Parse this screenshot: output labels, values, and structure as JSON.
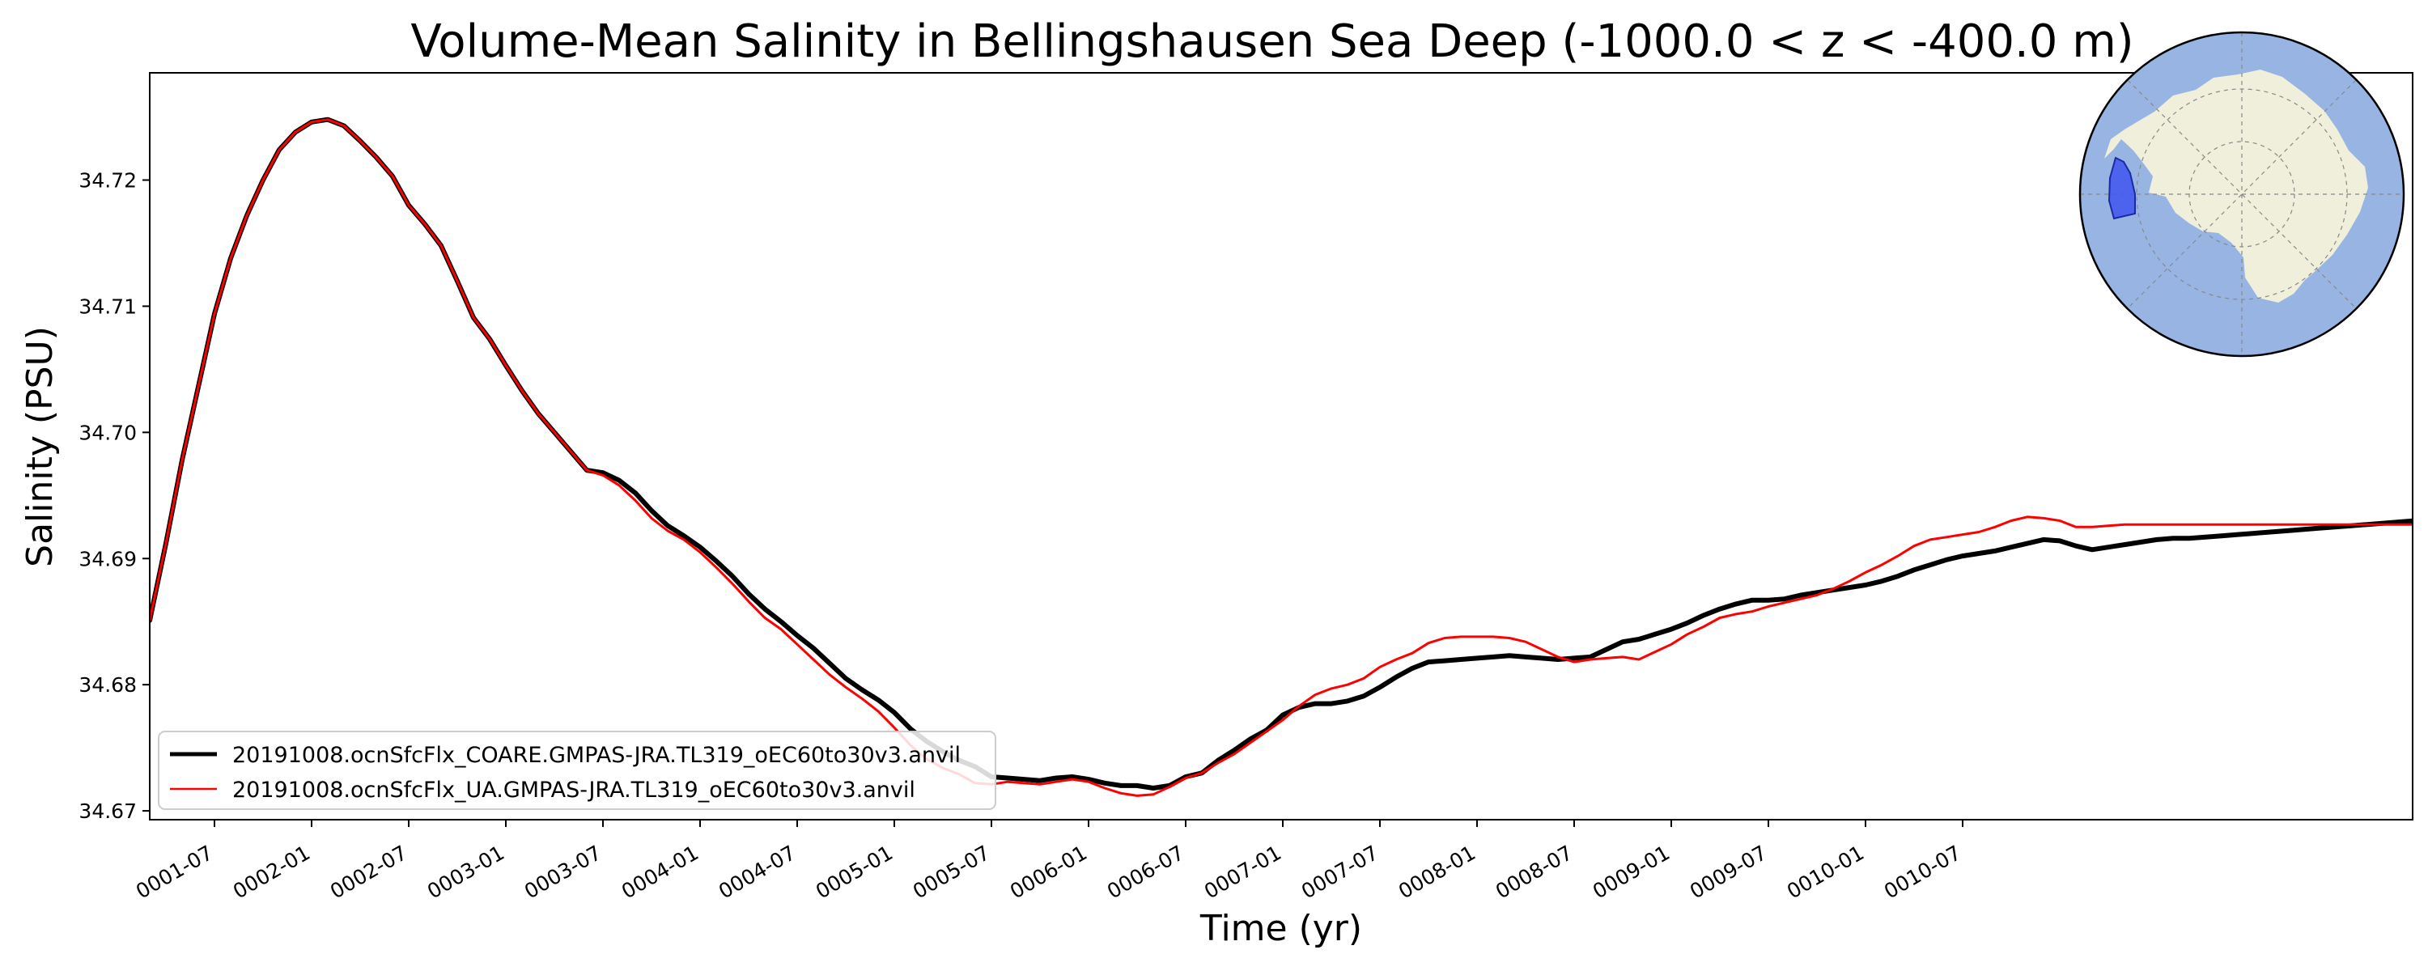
{
  "chart_data": {
    "type": "line",
    "title": "Volume-Mean Salinity in Bellingshausen Sea Deep (-1000.0 < z < -400.0 m)",
    "xlabel": "Time (yr)",
    "ylabel": "Salinity (PSU)",
    "x_unit": "months since 0001-01",
    "xlim": [
      2.0,
      141.8
    ],
    "ylim": [
      34.6693,
      34.7285
    ],
    "x_ticks": [
      {
        "value": 6,
        "label": "0001-07"
      },
      {
        "value": 12,
        "label": "0002-01"
      },
      {
        "value": 18,
        "label": "0002-07"
      },
      {
        "value": 24,
        "label": "0003-01"
      },
      {
        "value": 30,
        "label": "0003-07"
      },
      {
        "value": 36,
        "label": "0004-01"
      },
      {
        "value": 42,
        "label": "0004-07"
      },
      {
        "value": 48,
        "label": "0005-01"
      },
      {
        "value": 54,
        "label": "0005-07"
      },
      {
        "value": 60,
        "label": "0006-01"
      },
      {
        "value": 66,
        "label": "0006-07"
      },
      {
        "value": 72,
        "label": "0007-01"
      },
      {
        "value": 78,
        "label": "0007-07"
      },
      {
        "value": 84,
        "label": "0008-01"
      },
      {
        "value": 90,
        "label": "0008-07"
      },
      {
        "value": 96,
        "label": "0009-01"
      },
      {
        "value": 102,
        "label": "0009-07"
      },
      {
        "value": 108,
        "label": "0010-01"
      },
      {
        "value": 114,
        "label": "0010-07"
      }
    ],
    "y_ticks": [
      {
        "value": 34.67,
        "label": "34.67"
      },
      {
        "value": 34.68,
        "label": "34.68"
      },
      {
        "value": 34.69,
        "label": "34.69"
      },
      {
        "value": 34.7,
        "label": "34.70"
      },
      {
        "value": 34.71,
        "label": "34.71"
      },
      {
        "value": 34.72,
        "label": "34.72"
      }
    ],
    "legend_position": "lower-left",
    "series": [
      {
        "name": "20191008.ocnSfcFlx_COARE.GMPAS-JRA.TL319_oEC60to30v3.anvil",
        "color": "#000000",
        "linewidth": 3,
        "x": [
          2,
          3,
          4,
          5,
          6,
          7,
          8,
          9,
          10,
          11,
          12,
          13,
          14,
          15,
          16,
          17,
          18,
          19,
          20,
          21,
          22,
          23,
          24,
          25,
          26,
          27,
          28,
          29,
          30,
          31,
          32,
          33,
          34,
          35,
          36,
          37,
          38,
          39,
          40,
          41,
          42,
          43,
          44,
          45,
          46,
          47,
          48,
          49,
          50,
          51,
          52,
          53,
          54,
          55,
          56,
          57,
          58,
          59,
          60,
          61,
          62,
          63,
          64,
          65,
          66,
          67,
          68,
          69,
          70,
          71,
          72,
          73,
          74,
          75,
          76,
          77,
          78,
          79,
          80,
          81,
          82,
          83,
          84,
          85,
          86,
          87,
          88,
          89,
          90,
          91,
          92,
          93,
          94,
          95,
          96,
          97,
          98,
          99,
          100,
          101,
          102,
          103,
          104,
          105,
          106,
          107,
          108,
          109,
          110,
          111,
          112,
          113,
          114,
          115,
          116,
          117,
          118,
          119,
          120,
          121,
          122,
          123,
          124,
          125,
          126,
          127,
          128,
          129,
          130,
          131,
          132,
          133,
          134,
          135,
          136,
          137,
          138,
          139,
          140,
          141,
          142
        ],
        "y": [
          34.6851,
          34.6912,
          34.6978,
          34.7036,
          34.7094,
          34.7138,
          34.7172,
          34.72,
          34.7224,
          34.7238,
          34.7246,
          34.7248,
          34.7243,
          34.7231,
          34.7218,
          34.7203,
          34.718,
          34.7165,
          34.7148,
          34.712,
          34.7091,
          34.7074,
          34.7053,
          34.7033,
          34.7015,
          34.7,
          34.6985,
          34.697,
          34.6968,
          34.6962,
          34.6952,
          34.6938,
          34.6926,
          34.6918,
          34.6909,
          34.6898,
          34.6886,
          34.6872,
          34.686,
          34.685,
          34.6839,
          34.6829,
          34.6817,
          34.6805,
          34.6796,
          34.6788,
          34.6778,
          34.6765,
          34.6755,
          34.6747,
          34.674,
          34.6735,
          34.6727,
          34.6726,
          34.6725,
          34.6724,
          34.6726,
          34.6727,
          34.6725,
          34.6722,
          34.672,
          34.672,
          34.6718,
          34.672,
          34.6727,
          34.673,
          34.674,
          34.6748,
          34.6757,
          34.6764,
          34.6776,
          34.6782,
          34.6785,
          34.6785,
          34.6787,
          34.6791,
          34.6798,
          34.6806,
          34.6813,
          34.6818,
          34.6819,
          34.682,
          34.6821,
          34.6822,
          34.6823,
          34.6822,
          34.6821,
          34.682,
          34.6821,
          34.6822,
          34.6828,
          34.6834,
          34.6836,
          34.684,
          34.6844,
          34.6849,
          34.6855,
          34.686,
          34.6864,
          34.6867,
          34.6867,
          34.6868,
          34.6871,
          34.6873,
          34.6875,
          34.6877,
          34.6879,
          34.6882,
          34.6886,
          34.6891,
          34.6895,
          34.6899,
          34.6902,
          34.6904,
          34.6906,
          34.6909,
          34.6912,
          34.6915,
          34.6914,
          34.691,
          34.6907,
          34.6909,
          34.6911,
          34.6913,
          34.6915,
          34.6916,
          34.6916,
          34.6917,
          34.6918,
          34.6919,
          34.692,
          34.6921,
          34.6922,
          34.6923,
          34.6924,
          34.6925,
          34.6926,
          34.6927,
          34.6928,
          34.6929,
          34.693
        ]
      },
      {
        "name": "20191008.ocnSfcFlx_UA.GMPAS-JRA.TL319_oEC60to30v3.anvil",
        "color": "#ff0000",
        "linewidth": 1.5,
        "x": [
          2,
          3,
          4,
          5,
          6,
          7,
          8,
          9,
          10,
          11,
          12,
          13,
          14,
          15,
          16,
          17,
          18,
          19,
          20,
          21,
          22,
          23,
          24,
          25,
          26,
          27,
          28,
          29,
          30,
          31,
          32,
          33,
          34,
          35,
          36,
          37,
          38,
          39,
          40,
          41,
          42,
          43,
          44,
          45,
          46,
          47,
          48,
          49,
          50,
          51,
          52,
          53,
          54,
          55,
          56,
          57,
          58,
          59,
          60,
          61,
          62,
          63,
          64,
          65,
          66,
          67,
          68,
          69,
          70,
          71,
          72,
          73,
          74,
          75,
          76,
          77,
          78,
          79,
          80,
          81,
          82,
          83,
          84,
          85,
          86,
          87,
          88,
          89,
          90,
          91,
          92,
          93,
          94,
          95,
          96,
          97,
          98,
          99,
          100,
          101,
          102,
          103,
          104,
          105,
          106,
          107,
          108,
          109,
          110,
          111,
          112,
          113,
          114,
          115,
          116,
          117,
          118,
          119,
          120,
          121,
          122,
          123,
          124,
          125,
          126,
          127,
          128,
          129,
          130,
          131,
          132,
          133,
          134,
          135,
          136,
          137,
          138,
          139,
          140,
          141,
          142
        ],
        "y": [
          34.6851,
          34.6912,
          34.6978,
          34.7036,
          34.7094,
          34.7138,
          34.7172,
          34.72,
          34.7224,
          34.7238,
          34.7246,
          34.7248,
          34.7243,
          34.7231,
          34.7218,
          34.7203,
          34.718,
          34.7165,
          34.7148,
          34.712,
          34.7091,
          34.7074,
          34.7053,
          34.7033,
          34.7015,
          34.7,
          34.6985,
          34.697,
          34.6966,
          34.6958,
          34.6946,
          34.6932,
          34.6922,
          34.6915,
          34.6905,
          34.6893,
          34.688,
          34.6866,
          34.6853,
          34.6844,
          34.6832,
          34.682,
          34.6808,
          34.6798,
          34.6789,
          34.6779,
          34.6766,
          34.6752,
          34.6741,
          34.6734,
          34.6729,
          34.6722,
          34.6721,
          34.6723,
          34.6722,
          34.6721,
          34.6723,
          34.6725,
          34.6723,
          34.6718,
          34.6714,
          34.6712,
          34.6713,
          34.6719,
          34.6726,
          34.673,
          34.6738,
          34.6745,
          34.6754,
          34.6763,
          34.6772,
          34.6783,
          34.6792,
          34.6797,
          34.68,
          34.6805,
          34.6814,
          34.682,
          34.6825,
          34.6833,
          34.6837,
          34.6838,
          34.6838,
          34.6838,
          34.6837,
          34.6834,
          34.6828,
          34.6822,
          34.6818,
          34.682,
          34.6821,
          34.6822,
          34.682,
          34.6826,
          34.6832,
          34.684,
          34.6846,
          34.6853,
          34.6856,
          34.6858,
          34.6862,
          34.6865,
          34.6868,
          34.6871,
          34.6876,
          34.6882,
          34.6889,
          34.6895,
          34.6902,
          34.691,
          34.6915,
          34.6917,
          34.6919,
          34.6921,
          34.6925,
          34.693,
          34.6933,
          34.6932,
          34.693,
          34.6925,
          34.6925,
          34.6926,
          34.6927,
          34.6927,
          34.6927,
          34.6927,
          34.6927,
          34.6927,
          34.6927,
          34.6927,
          34.6927,
          34.6927,
          34.6927,
          34.6927,
          34.6927,
          34.6927,
          34.6927,
          34.6927,
          34.6927,
          34.6927,
          34.6927
        ]
      }
    ]
  },
  "inset_map": {
    "name": "antarctica-region-map",
    "ocean_color": "#97b4e3",
    "land_color": "#efefdb",
    "region_color": "#3f55f0"
  }
}
